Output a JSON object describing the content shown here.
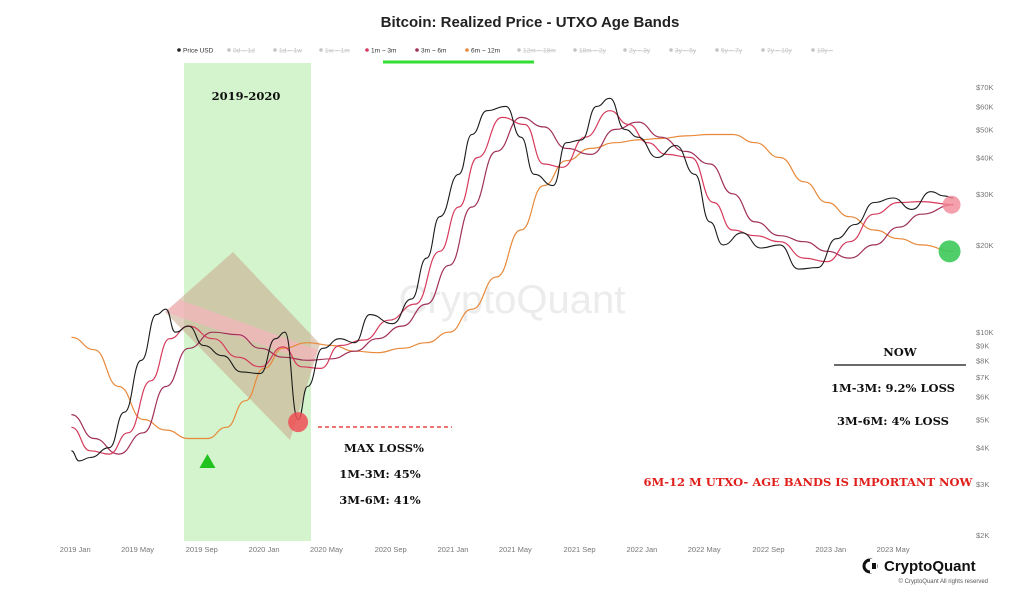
{
  "chart_data": {
    "type": "line",
    "title": "Bitcoin: Realized Price - UTXO Age Bands",
    "y_scale": "log",
    "ylim": [
      2000,
      70000
    ],
    "y_ticks": [
      {
        "label": "$70K",
        "value": 70000
      },
      {
        "label": "$60K",
        "value": 60000
      },
      {
        "label": "$50K",
        "value": 50000
      },
      {
        "label": "$40K",
        "value": 40000
      },
      {
        "label": "$30K",
        "value": 30000
      },
      {
        "label": "$20K",
        "value": 20000
      },
      {
        "label": "$10K",
        "value": 10000
      },
      {
        "label": "$9K",
        "value": 9000
      },
      {
        "label": "$8K",
        "value": 8000
      },
      {
        "label": "$7K",
        "value": 7000
      },
      {
        "label": "$6K",
        "value": 6000
      },
      {
        "label": "$5K",
        "value": 5000
      },
      {
        "label": "$4K",
        "value": 4000
      },
      {
        "label": "$3K",
        "value": 3000
      },
      {
        "label": "$2K",
        "value": 2000
      }
    ],
    "x_ticks": [
      "2019 Jan",
      "2019 May",
      "2019 Sep",
      "2020 Jan",
      "2020 May",
      "2020 Sep",
      "2021 Jan",
      "2021 May",
      "2021 Sep",
      "2022 Jan",
      "2022 May",
      "2022 Sep",
      "2023 Jan",
      "2023 May"
    ],
    "legend": [
      {
        "name": "Price USD",
        "active": true,
        "color": "#222222"
      },
      {
        "name": "0d ~ 1d",
        "active": false,
        "color": "#cccccc"
      },
      {
        "name": "1d ~ 1w",
        "active": false,
        "color": "#cccccc"
      },
      {
        "name": "1w ~ 1m",
        "active": false,
        "color": "#cccccc"
      },
      {
        "name": "1m ~ 3m",
        "active": true,
        "color": "#d63a5c"
      },
      {
        "name": "3m ~ 6m",
        "active": true,
        "color": "#a0305a"
      },
      {
        "name": "6m ~ 12m",
        "active": true,
        "color": "#e8893a"
      },
      {
        "name": "12m ~ 18m",
        "active": false,
        "color": "#cccccc"
      },
      {
        "name": "18m ~ 2y",
        "active": false,
        "color": "#cccccc"
      },
      {
        "name": "2y ~ 3y",
        "active": false,
        "color": "#cccccc"
      },
      {
        "name": "3y ~ 5y",
        "active": false,
        "color": "#cccccc"
      },
      {
        "name": "5y ~ 7y",
        "active": false,
        "color": "#cccccc"
      },
      {
        "name": "7y ~ 10y",
        "active": false,
        "color": "#cccccc"
      },
      {
        "name": "10y ~",
        "active": false,
        "color": "#cccccc"
      }
    ],
    "series": [
      {
        "name": "Price USD",
        "color": "#1a1a1a",
        "points": [
          [
            2019.0,
            3900
          ],
          [
            2019.04,
            3600
          ],
          [
            2019.1,
            3700
          ],
          [
            2019.2,
            4000
          ],
          [
            2019.28,
            5300
          ],
          [
            2019.37,
            8000
          ],
          [
            2019.45,
            11500
          ],
          [
            2019.5,
            12000
          ],
          [
            2019.55,
            10000
          ],
          [
            2019.62,
            10500
          ],
          [
            2019.7,
            9000
          ],
          [
            2019.8,
            8300
          ],
          [
            2019.9,
            7300
          ],
          [
            2020.0,
            7200
          ],
          [
            2020.08,
            9500
          ],
          [
            2020.13,
            10000
          ],
          [
            2020.2,
            5000
          ],
          [
            2020.25,
            6500
          ],
          [
            2020.33,
            8800
          ],
          [
            2020.42,
            9500
          ],
          [
            2020.5,
            9200
          ],
          [
            2020.58,
            11500
          ],
          [
            2020.7,
            10700
          ],
          [
            2020.8,
            13000
          ],
          [
            2020.88,
            18000
          ],
          [
            2020.95,
            25000
          ],
          [
            2021.05,
            35000
          ],
          [
            2021.12,
            48000
          ],
          [
            2021.2,
            58000
          ],
          [
            2021.3,
            60000
          ],
          [
            2021.38,
            47000
          ],
          [
            2021.45,
            35000
          ],
          [
            2021.55,
            32000
          ],
          [
            2021.62,
            45000
          ],
          [
            2021.7,
            46000
          ],
          [
            2021.78,
            60000
          ],
          [
            2021.85,
            64000
          ],
          [
            2021.93,
            50000
          ],
          [
            2022.0,
            47000
          ],
          [
            2022.1,
            40000
          ],
          [
            2022.2,
            44000
          ],
          [
            2022.3,
            35000
          ],
          [
            2022.38,
            24000
          ],
          [
            2022.45,
            20000
          ],
          [
            2022.55,
            22000
          ],
          [
            2022.65,
            19500
          ],
          [
            2022.75,
            20000
          ],
          [
            2022.85,
            16500
          ],
          [
            2022.95,
            16700
          ],
          [
            2023.05,
            21000
          ],
          [
            2023.15,
            23500
          ],
          [
            2023.25,
            28000
          ],
          [
            2023.35,
            29000
          ],
          [
            2023.45,
            26500
          ],
          [
            2023.55,
            30500
          ],
          [
            2023.62,
            29500
          ],
          [
            2023.67,
            29000
          ]
        ]
      },
      {
        "name": "1m ~ 3m",
        "color": "#d63a5c",
        "points": [
          [
            2019.0,
            4700
          ],
          [
            2019.1,
            3900
          ],
          [
            2019.2,
            3800
          ],
          [
            2019.3,
            4500
          ],
          [
            2019.42,
            6800
          ],
          [
            2019.52,
            9500
          ],
          [
            2019.62,
            10500
          ],
          [
            2019.75,
            9500
          ],
          [
            2019.88,
            8200
          ],
          [
            2020.0,
            7600
          ],
          [
            2020.12,
            8900
          ],
          [
            2020.22,
            7600
          ],
          [
            2020.32,
            7500
          ],
          [
            2020.42,
            9000
          ],
          [
            2020.55,
            9400
          ],
          [
            2020.68,
            11000
          ],
          [
            2020.82,
            12500
          ],
          [
            2020.95,
            19000
          ],
          [
            2021.05,
            27000
          ],
          [
            2021.15,
            40000
          ],
          [
            2021.28,
            55000
          ],
          [
            2021.4,
            52000
          ],
          [
            2021.5,
            38000
          ],
          [
            2021.6,
            37000
          ],
          [
            2021.72,
            47000
          ],
          [
            2021.85,
            58000
          ],
          [
            2021.95,
            52000
          ],
          [
            2022.05,
            45000
          ],
          [
            2022.15,
            41000
          ],
          [
            2022.28,
            40000
          ],
          [
            2022.4,
            28000
          ],
          [
            2022.5,
            22500
          ],
          [
            2022.62,
            21500
          ],
          [
            2022.75,
            20500
          ],
          [
            2022.88,
            18000
          ],
          [
            2023.0,
            17500
          ],
          [
            2023.12,
            20500
          ],
          [
            2023.25,
            25500
          ],
          [
            2023.38,
            28000
          ],
          [
            2023.5,
            28200
          ],
          [
            2023.67,
            27500
          ]
        ]
      },
      {
        "name": "3m ~ 6m",
        "color": "#a0305a",
        "points": [
          [
            2019.0,
            5200
          ],
          [
            2019.12,
            4300
          ],
          [
            2019.25,
            3800
          ],
          [
            2019.38,
            4500
          ],
          [
            2019.5,
            6500
          ],
          [
            2019.62,
            8800
          ],
          [
            2019.75,
            10000
          ],
          [
            2019.88,
            9800
          ],
          [
            2020.0,
            8800
          ],
          [
            2020.12,
            8200
          ],
          [
            2020.25,
            8000
          ],
          [
            2020.38,
            8100
          ],
          [
            2020.5,
            8600
          ],
          [
            2020.62,
            9500
          ],
          [
            2020.75,
            10500
          ],
          [
            2020.88,
            12500
          ],
          [
            2021.0,
            17000
          ],
          [
            2021.12,
            27000
          ],
          [
            2021.25,
            42000
          ],
          [
            2021.38,
            55000
          ],
          [
            2021.5,
            51000
          ],
          [
            2021.62,
            43000
          ],
          [
            2021.75,
            41000
          ],
          [
            2021.88,
            50000
          ],
          [
            2022.0,
            53000
          ],
          [
            2022.12,
            47000
          ],
          [
            2022.25,
            42000
          ],
          [
            2022.38,
            38000
          ],
          [
            2022.5,
            30000
          ],
          [
            2022.62,
            24000
          ],
          [
            2022.75,
            21500
          ],
          [
            2022.88,
            20500
          ],
          [
            2023.0,
            19000
          ],
          [
            2023.12,
            18000
          ],
          [
            2023.25,
            20000
          ],
          [
            2023.38,
            23000
          ],
          [
            2023.5,
            25500
          ],
          [
            2023.67,
            27500
          ]
        ]
      },
      {
        "name": "6m ~ 12m",
        "color": "#e8893a",
        "points": [
          [
            2019.0,
            9600
          ],
          [
            2019.12,
            8700
          ],
          [
            2019.25,
            6500
          ],
          [
            2019.38,
            5000
          ],
          [
            2019.5,
            4600
          ],
          [
            2019.62,
            4300
          ],
          [
            2019.72,
            4300
          ],
          [
            2019.82,
            4700
          ],
          [
            2019.92,
            5800
          ],
          [
            2020.02,
            7500
          ],
          [
            2020.12,
            8800
          ],
          [
            2020.25,
            9200
          ],
          [
            2020.38,
            9000
          ],
          [
            2020.5,
            8600
          ],
          [
            2020.62,
            8500
          ],
          [
            2020.75,
            8800
          ],
          [
            2020.88,
            9200
          ],
          [
            2021.0,
            10000
          ],
          [
            2021.12,
            12000
          ],
          [
            2021.25,
            15500
          ],
          [
            2021.38,
            22500
          ],
          [
            2021.5,
            32000
          ],
          [
            2021.62,
            39000
          ],
          [
            2021.75,
            43000
          ],
          [
            2021.88,
            45000
          ],
          [
            2022.0,
            46000
          ],
          [
            2022.12,
            46500
          ],
          [
            2022.25,
            47500
          ],
          [
            2022.38,
            48000
          ],
          [
            2022.5,
            48000
          ],
          [
            2022.62,
            45000
          ],
          [
            2022.75,
            40000
          ],
          [
            2022.88,
            33000
          ],
          [
            2023.0,
            28000
          ],
          [
            2023.12,
            25000
          ],
          [
            2023.25,
            22500
          ],
          [
            2023.38,
            21000
          ],
          [
            2023.5,
            20000
          ],
          [
            2023.67,
            19000
          ]
        ]
      }
    ],
    "highlight_period": "2019-2020",
    "annotations": {
      "max_loss_title": "MAX LOSS%",
      "max_loss_1m3m": "1M-3M: 45%",
      "max_loss_3m6m": "3M-6M: 41%",
      "now_title": "NOW",
      "now_1m3m": "1M-3M: 9.2% LOSS",
      "now_3m6m": "3M-6M: 4% LOSS",
      "important_note": "6M-12 M  UTXO- AGE BANDS IS IMPORTANT NOW"
    },
    "markers": {
      "low_circle_value": 4900,
      "low_circle_date": 2020.2,
      "now_pink_value": 27500,
      "now_green_value": 19000,
      "now_date": 2023.67,
      "triangle_date": 2019.72,
      "triangle_value": 3800
    }
  },
  "watermark": "CryptoQuant",
  "brand": {
    "name": "CryptoQuant",
    "copyright": "© CryptoQuant All rights reserved"
  },
  "colors": {
    "green_band": "#ccf2c6",
    "diamond": "#c8a890",
    "diamond_pink": "#f6b3bd",
    "red_circle": "#ee4f56",
    "green_circle": "#3cc95a",
    "legend_underline": "#33dd33",
    "note_red": "#e0201c"
  }
}
